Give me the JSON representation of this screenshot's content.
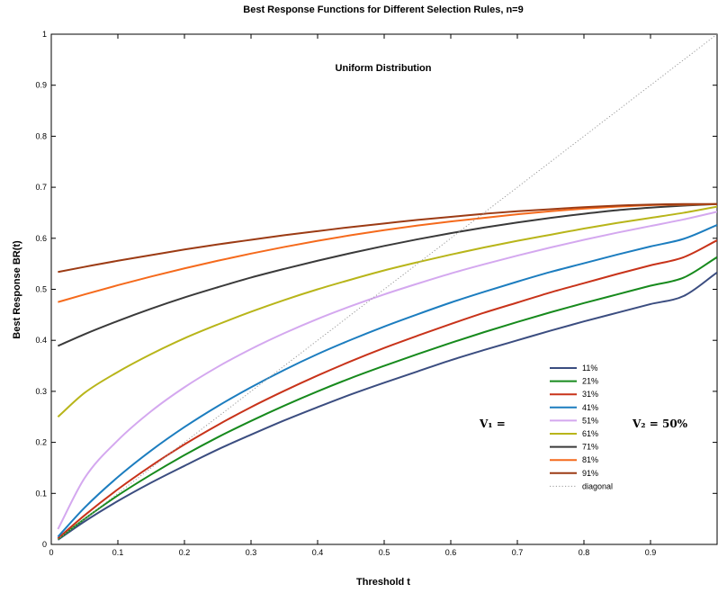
{
  "chart_data": {
    "type": "line",
    "title": "Best Response Functions for Different Selection Rules, n=9",
    "subtitle": "Uniform Distribution",
    "xlabel": "Threshold t",
    "ylabel": "Best Response BR(t)",
    "xlim": [
      0,
      1
    ],
    "ylim": [
      0,
      1
    ],
    "xticks": [
      "0",
      "0.1",
      "0.2",
      "0.3",
      "0.4",
      "0.5",
      "0.6",
      "0.7",
      "0.8",
      "0.9"
    ],
    "yticks": [
      "0",
      "0.1",
      "0.2",
      "0.3",
      "0.4",
      "0.5",
      "0.6",
      "0.7",
      "0.8",
      "0.9",
      "1"
    ],
    "x": [
      0.01,
      0.05,
      0.1,
      0.15,
      0.2,
      0.25,
      0.3,
      0.35,
      0.4,
      0.45,
      0.5,
      0.55,
      0.6,
      0.65,
      0.7,
      0.75,
      0.8,
      0.85,
      0.9,
      0.95,
      1.0
    ],
    "series": [
      {
        "name": "11%",
        "color": "#3b4d80",
        "values": [
          0.009,
          0.045,
          0.085,
          0.121,
          0.154,
          0.186,
          0.215,
          0.243,
          0.269,
          0.294,
          0.317,
          0.339,
          0.361,
          0.381,
          0.4,
          0.419,
          0.437,
          0.454,
          0.471,
          0.487,
          0.533
        ]
      },
      {
        "name": "21%",
        "color": "#178a1d",
        "values": [
          0.01,
          0.05,
          0.096,
          0.137,
          0.175,
          0.21,
          0.242,
          0.272,
          0.3,
          0.326,
          0.35,
          0.373,
          0.395,
          0.416,
          0.436,
          0.455,
          0.473,
          0.49,
          0.507,
          0.523,
          0.563
        ]
      },
      {
        "name": "31%",
        "color": "#c8331a",
        "values": [
          0.012,
          0.057,
          0.108,
          0.154,
          0.196,
          0.234,
          0.269,
          0.301,
          0.331,
          0.359,
          0.385,
          0.409,
          0.432,
          0.454,
          0.474,
          0.494,
          0.512,
          0.53,
          0.547,
          0.563,
          0.596
        ]
      },
      {
        "name": "41%",
        "color": "#1c7dbf",
        "values": [
          0.015,
          0.072,
          0.132,
          0.184,
          0.23,
          0.271,
          0.308,
          0.342,
          0.373,
          0.401,
          0.427,
          0.451,
          0.474,
          0.495,
          0.515,
          0.534,
          0.551,
          0.568,
          0.584,
          0.599,
          0.626
        ]
      },
      {
        "name": "51%",
        "color": "#d4a8ef",
        "values": [
          0.03,
          0.13,
          0.204,
          0.261,
          0.308,
          0.348,
          0.383,
          0.414,
          0.442,
          0.467,
          0.49,
          0.511,
          0.531,
          0.549,
          0.566,
          0.582,
          0.597,
          0.611,
          0.624,
          0.637,
          0.652
        ]
      },
      {
        "name": "61%",
        "color": "#b8b51a",
        "values": [
          0.25,
          0.297,
          0.338,
          0.373,
          0.404,
          0.431,
          0.456,
          0.479,
          0.5,
          0.519,
          0.537,
          0.553,
          0.568,
          0.582,
          0.595,
          0.607,
          0.619,
          0.63,
          0.64,
          0.65,
          0.662
        ]
      },
      {
        "name": "71%",
        "color": "#3a3a3a",
        "values": [
          0.389,
          0.412,
          0.438,
          0.462,
          0.484,
          0.504,
          0.523,
          0.54,
          0.556,
          0.571,
          0.585,
          0.598,
          0.61,
          0.621,
          0.631,
          0.64,
          0.648,
          0.655,
          0.66,
          0.664,
          0.667
        ]
      },
      {
        "name": "81%",
        "color": "#f56a1c",
        "values": [
          0.475,
          0.49,
          0.508,
          0.525,
          0.541,
          0.556,
          0.57,
          0.583,
          0.595,
          0.606,
          0.616,
          0.625,
          0.633,
          0.64,
          0.647,
          0.653,
          0.658,
          0.662,
          0.665,
          0.666,
          0.667
        ]
      },
      {
        "name": "91%",
        "color": "#9c3b14",
        "values": [
          0.534,
          0.544,
          0.556,
          0.567,
          0.578,
          0.588,
          0.597,
          0.606,
          0.614,
          0.622,
          0.629,
          0.636,
          0.642,
          0.648,
          0.653,
          0.657,
          0.661,
          0.664,
          0.666,
          0.667,
          0.667
        ]
      },
      {
        "name": "diagonal",
        "color": "#9a9a9a",
        "style": "dotted",
        "values": [
          0.01,
          0.05,
          0.1,
          0.15,
          0.2,
          0.25,
          0.3,
          0.35,
          0.4,
          0.45,
          0.5,
          0.55,
          0.6,
          0.65,
          0.7,
          0.75,
          0.8,
          0.85,
          0.9,
          0.95,
          1.0
        ]
      }
    ],
    "annotations": {
      "v1": "V₁ =",
      "v2": "V₂ =  50%"
    },
    "legend_position": "lower-right",
    "grid": false
  }
}
